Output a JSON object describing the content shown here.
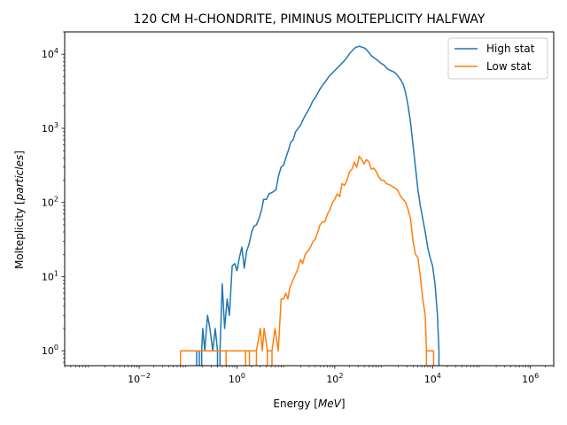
{
  "chart_data": {
    "type": "line",
    "title": "120 CM H-CHONDRITE, PIMINUS MOLTEPLICITY HALFWAY",
    "xlabel": {
      "main": "Energy ",
      "math": "MeV"
    },
    "ylabel": {
      "main": "Molteplicity ",
      "math": "particles"
    },
    "xscale": "log",
    "yscale": "log",
    "xlim": [
      0.0003,
      3000000
    ],
    "ylim": [
      0.63,
      20000
    ],
    "x_ticks": [
      {
        "value": 0.01,
        "base": "10",
        "exp": "−2"
      },
      {
        "value": 1,
        "base": "10",
        "exp": "0"
      },
      {
        "value": 100,
        "base": "10",
        "exp": "2"
      },
      {
        "value": 10000,
        "base": "10",
        "exp": "4"
      },
      {
        "value": 1000000,
        "base": "10",
        "exp": "6"
      }
    ],
    "y_ticks": [
      {
        "value": 1,
        "base": "10",
        "exp": "0"
      },
      {
        "value": 10,
        "base": "10",
        "exp": "1"
      },
      {
        "value": 100,
        "base": "10",
        "exp": "2"
      },
      {
        "value": 1000,
        "base": "10",
        "exp": "3"
      },
      {
        "value": 10000,
        "base": "10",
        "exp": "4"
      }
    ],
    "grid": false,
    "legend": "top-right",
    "series": [
      {
        "name": "High stat",
        "color": "#1f77b4",
        "points": [
          [
            0.15,
            1
          ],
          [
            0.17,
            1
          ],
          [
            0.19,
            1
          ],
          [
            0.2,
            2
          ],
          [
            0.22,
            1
          ],
          [
            0.25,
            3
          ],
          [
            0.28,
            2
          ],
          [
            0.32,
            1
          ],
          [
            0.36,
            2
          ],
          [
            0.4,
            1
          ],
          [
            0.45,
            1
          ],
          [
            0.5,
            8
          ],
          [
            0.56,
            2
          ],
          [
            0.63,
            5
          ],
          [
            0.7,
            3
          ],
          [
            0.8,
            14
          ],
          [
            0.9,
            15
          ],
          [
            1.0,
            12
          ],
          [
            1.12,
            18
          ],
          [
            1.26,
            25
          ],
          [
            1.41,
            13
          ],
          [
            1.58,
            22
          ],
          [
            1.78,
            28
          ],
          [
            2.0,
            40
          ],
          [
            2.24,
            48
          ],
          [
            2.5,
            50
          ],
          [
            2.8,
            60
          ],
          [
            3.2,
            80
          ],
          [
            3.5,
            110
          ],
          [
            4.0,
            110
          ],
          [
            4.5,
            130
          ],
          [
            5.0,
            135
          ],
          [
            5.6,
            140
          ],
          [
            6.3,
            150
          ],
          [
            7.1,
            230
          ],
          [
            8.0,
            300
          ],
          [
            9.0,
            320
          ],
          [
            10,
            400
          ],
          [
            11.2,
            500
          ],
          [
            12.6,
            650
          ],
          [
            14.1,
            700
          ],
          [
            15.8,
            900
          ],
          [
            17.8,
            1000
          ],
          [
            20,
            1100
          ],
          [
            22.4,
            1300
          ],
          [
            25,
            1500
          ],
          [
            28,
            1700
          ],
          [
            32,
            2000
          ],
          [
            35,
            2300
          ],
          [
            40,
            2600
          ],
          [
            45,
            3000
          ],
          [
            50,
            3400
          ],
          [
            56,
            3800
          ],
          [
            63,
            4200
          ],
          [
            71,
            4700
          ],
          [
            80,
            5200
          ],
          [
            90,
            5600
          ],
          [
            100,
            6000
          ],
          [
            112,
            6500
          ],
          [
            126,
            7000
          ],
          [
            141,
            7600
          ],
          [
            158,
            8200
          ],
          [
            178,
            9000
          ],
          [
            200,
            10200
          ],
          [
            224,
            11000
          ],
          [
            251,
            12000
          ],
          [
            282,
            12500
          ],
          [
            316,
            12800
          ],
          [
            355,
            12500
          ],
          [
            398,
            12200
          ],
          [
            447,
            11500
          ],
          [
            501,
            10500
          ],
          [
            562,
            9500
          ],
          [
            631,
            9000
          ],
          [
            708,
            8500
          ],
          [
            794,
            8000
          ],
          [
            891,
            7500
          ],
          [
            1000,
            7200
          ],
          [
            1122,
            6600
          ],
          [
            1259,
            6200
          ],
          [
            1413,
            6000
          ],
          [
            1585,
            5800
          ],
          [
            1778,
            5500
          ],
          [
            1995,
            5000
          ],
          [
            2239,
            4500
          ],
          [
            2512,
            3900
          ],
          [
            2818,
            3000
          ],
          [
            3162,
            2000
          ],
          [
            3548,
            1200
          ],
          [
            3981,
            600
          ],
          [
            4467,
            300
          ],
          [
            5012,
            150
          ],
          [
            5623,
            90
          ],
          [
            6310,
            60
          ],
          [
            7079,
            40
          ],
          [
            7943,
            25
          ],
          [
            8913,
            18
          ],
          [
            10000,
            14
          ],
          [
            11220,
            8
          ],
          [
            12589,
            3
          ],
          [
            13500,
            1
          ]
        ]
      },
      {
        "name": "Low stat",
        "color": "#ff7f0e",
        "points": [
          [
            0.07,
            1
          ],
          [
            0.6,
            1
          ],
          [
            1.5,
            1
          ],
          [
            1.8,
            1
          ],
          [
            2.5,
            1
          ],
          [
            3.0,
            2
          ],
          [
            3.3,
            1
          ],
          [
            3.6,
            2
          ],
          [
            4.2,
            1
          ],
          [
            5.2,
            1
          ],
          [
            6.0,
            2
          ],
          [
            7.0,
            1
          ],
          [
            8.0,
            5
          ],
          [
            9.0,
            5
          ],
          [
            10,
            6
          ],
          [
            11,
            5
          ],
          [
            12,
            7
          ],
          [
            13,
            8
          ],
          [
            15,
            10
          ],
          [
            17,
            12
          ],
          [
            20,
            17
          ],
          [
            22,
            15
          ],
          [
            25,
            20
          ],
          [
            28,
            22
          ],
          [
            32,
            25
          ],
          [
            36,
            30
          ],
          [
            40,
            32
          ],
          [
            45,
            40
          ],
          [
            50,
            50
          ],
          [
            56,
            55
          ],
          [
            63,
            55
          ],
          [
            71,
            70
          ],
          [
            80,
            80
          ],
          [
            90,
            100
          ],
          [
            100,
            110
          ],
          [
            112,
            130
          ],
          [
            126,
            120
          ],
          [
            141,
            180
          ],
          [
            158,
            170
          ],
          [
            178,
            200
          ],
          [
            200,
            260
          ],
          [
            224,
            280
          ],
          [
            251,
            350
          ],
          [
            282,
            300
          ],
          [
            316,
            420
          ],
          [
            355,
            380
          ],
          [
            398,
            330
          ],
          [
            447,
            380
          ],
          [
            501,
            350
          ],
          [
            562,
            280
          ],
          [
            631,
            290
          ],
          [
            708,
            260
          ],
          [
            794,
            220
          ],
          [
            891,
            200
          ],
          [
            1000,
            200
          ],
          [
            1122,
            180
          ],
          [
            1259,
            175
          ],
          [
            1413,
            170
          ],
          [
            1585,
            160
          ],
          [
            1778,
            155
          ],
          [
            1995,
            140
          ],
          [
            2239,
            120
          ],
          [
            2512,
            110
          ],
          [
            2818,
            100
          ],
          [
            3162,
            80
          ],
          [
            3548,
            60
          ],
          [
            3981,
            30
          ],
          [
            4467,
            20
          ],
          [
            5012,
            18
          ],
          [
            5623,
            10
          ],
          [
            6310,
            5
          ],
          [
            7079,
            3
          ],
          [
            7500,
            1
          ],
          [
            10500,
            1
          ]
        ]
      }
    ]
  }
}
